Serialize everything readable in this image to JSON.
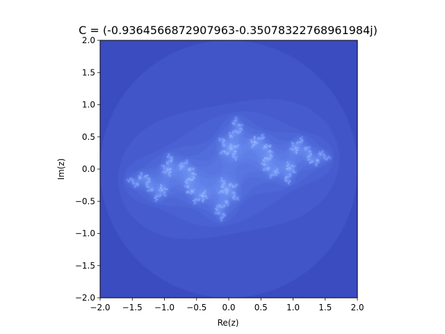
{
  "chart_data": {
    "type": "heatmap",
    "title": "C = (-0.9364566872907963-0.35078322768961984j)",
    "xlabel": "Re(z)",
    "ylabel": "Im(z)",
    "xlim": [
      -2.0,
      2.0
    ],
    "ylim": [
      -2.0,
      2.0
    ],
    "x_ticks": [
      -2.0,
      -1.5,
      -1.0,
      -0.5,
      0.0,
      0.5,
      1.0,
      1.5,
      2.0
    ],
    "x_tick_labels": [
      "−2.0",
      "−1.5",
      "−1.0",
      "−0.5",
      "0.0",
      "0.5",
      "1.0",
      "1.5",
      "2.0"
    ],
    "y_ticks": [
      2.0,
      1.5,
      1.0,
      0.5,
      0.0,
      -0.5,
      -1.0,
      -1.5,
      -2.0
    ],
    "y_tick_labels": [
      "2.0",
      "1.5",
      "1.0",
      "0.5",
      "0.0",
      "−0.5",
      "−1.0",
      "−1.5",
      "−2.0"
    ],
    "c_real": -0.9364566872907963,
    "c_imag": -0.35078322768961984,
    "max_iter": 60,
    "colormap": [
      "#3b4cc0",
      "#4f69d9",
      "#6688ee",
      "#7da0f9",
      "#98b9ff",
      "#b3cdfb",
      "#d1dae9",
      "#e8d6cc"
    ]
  }
}
